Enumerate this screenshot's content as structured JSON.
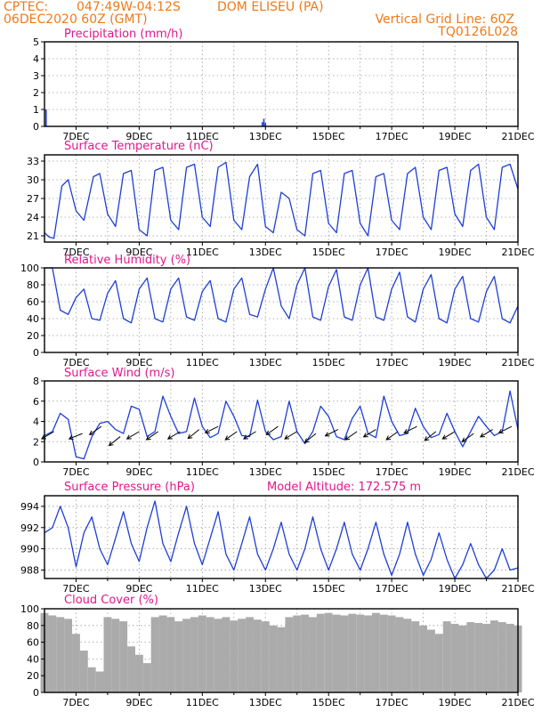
{
  "header": {
    "source": "CPTEC:",
    "coords": "047:49W-04:12S",
    "location": "DOM ELISEU (PA)",
    "run": "06DEC2020 60Z (GMT)",
    "vertical_grid": "Vertical Grid Line: 60Z",
    "model": "TQ0126L028"
  },
  "x_axis": {
    "tick_labels": [
      "7DEC",
      "9DEC",
      "11DEC",
      "13DEC",
      "15DEC",
      "17DEC",
      "19DEC",
      "21DEC"
    ],
    "start_day": 6,
    "end_day": 21
  },
  "colors": {
    "header": "#ee7a1a",
    "panel_title": "#e0188c",
    "series": "#1f3fd6",
    "cloud": "#ababab"
  },
  "chart_data": [
    {
      "type": "bar",
      "title": "Precipitation (mm/h)",
      "ylim": [
        0,
        5
      ],
      "yticks": [
        0,
        1,
        2,
        3,
        4,
        5
      ],
      "x": [
        6.05,
        12.9,
        12.95,
        13.0
      ],
      "values": [
        1.0,
        0.25,
        0.45,
        0.2
      ],
      "unit": "mm/h"
    },
    {
      "type": "line",
      "title": "Surface Temperature (nC)",
      "ylim": [
        20,
        34
      ],
      "yticks": [
        21,
        24,
        27,
        30,
        33
      ],
      "x": [
        6.0,
        6.15,
        6.3,
        6.55,
        6.75,
        7.0,
        7.25,
        7.55,
        7.75,
        8.0,
        8.25,
        8.5,
        8.75,
        9.0,
        9.25,
        9.5,
        9.75,
        10.0,
        10.25,
        10.5,
        10.75,
        11.0,
        11.25,
        11.5,
        11.75,
        12.0,
        12.25,
        12.5,
        12.75,
        13.0,
        13.25,
        13.5,
        13.75,
        14.0,
        14.25,
        14.5,
        14.75,
        15.0,
        15.25,
        15.5,
        15.75,
        16.0,
        16.25,
        16.5,
        16.75,
        17.0,
        17.25,
        17.5,
        17.75,
        18.0,
        18.25,
        18.5,
        18.75,
        19.0,
        19.25,
        19.5,
        19.75,
        20.0,
        20.25,
        20.5,
        20.75,
        21.0
      ],
      "values": [
        21.5,
        20.8,
        20.6,
        29.0,
        30.0,
        25.0,
        23.5,
        30.5,
        31.0,
        24.5,
        22.5,
        31.0,
        31.5,
        22.0,
        21.0,
        31.5,
        32.0,
        23.5,
        22.0,
        32.0,
        32.5,
        24.0,
        22.5,
        32.0,
        32.8,
        23.5,
        22.0,
        30.5,
        32.5,
        22.5,
        21.5,
        28.0,
        27.0,
        22.0,
        21.0,
        31.0,
        31.5,
        23.0,
        21.5,
        31.0,
        31.5,
        23.0,
        21.0,
        30.5,
        31.0,
        23.5,
        22.0,
        31.0,
        32.0,
        24.0,
        22.0,
        31.5,
        32.0,
        24.5,
        22.5,
        31.5,
        32.5,
        24.0,
        22.0,
        32.0,
        32.5,
        28.5
      ],
      "unit": "C"
    },
    {
      "type": "line",
      "title": "Relative Humidity (%)",
      "ylim": [
        0,
        100
      ],
      "yticks": [
        0,
        20,
        40,
        60,
        80,
        100
      ],
      "x": [
        6.0,
        6.25,
        6.5,
        6.75,
        7.0,
        7.25,
        7.5,
        7.75,
        8.0,
        8.25,
        8.5,
        8.75,
        9.0,
        9.25,
        9.5,
        9.75,
        10.0,
        10.25,
        10.5,
        10.75,
        11.0,
        11.25,
        11.5,
        11.75,
        12.0,
        12.25,
        12.5,
        12.75,
        13.0,
        13.25,
        13.5,
        13.75,
        14.0,
        14.25,
        14.5,
        14.75,
        15.0,
        15.25,
        15.5,
        15.75,
        16.0,
        16.25,
        16.5,
        16.75,
        17.0,
        17.25,
        17.5,
        17.75,
        18.0,
        18.25,
        18.5,
        18.75,
        19.0,
        19.25,
        19.5,
        19.75,
        20.0,
        20.25,
        20.5,
        20.75,
        21.0
      ],
      "values": [
        100,
        100,
        50,
        45,
        65,
        75,
        40,
        38,
        70,
        85,
        40,
        35,
        75,
        88,
        40,
        36,
        75,
        88,
        42,
        38,
        72,
        85,
        40,
        36,
        75,
        88,
        45,
        42,
        75,
        100,
        55,
        40,
        80,
        100,
        42,
        38,
        78,
        98,
        42,
        38,
        80,
        100,
        42,
        38,
        75,
        95,
        42,
        36,
        75,
        92,
        40,
        35,
        75,
        90,
        40,
        36,
        72,
        90,
        40,
        35,
        55
      ],
      "unit": "%"
    },
    {
      "type": "line",
      "title": "Surface Wind (m/s)",
      "ylim": [
        0,
        8
      ],
      "yticks": [
        0,
        2,
        4,
        6,
        8
      ],
      "x": [
        6.0,
        6.25,
        6.5,
        6.75,
        7.0,
        7.25,
        7.5,
        7.75,
        8.0,
        8.25,
        8.5,
        8.75,
        9.0,
        9.25,
        9.5,
        9.75,
        10.0,
        10.25,
        10.5,
        10.75,
        11.0,
        11.25,
        11.5,
        11.75,
        12.0,
        12.25,
        12.5,
        12.75,
        13.0,
        13.25,
        13.5,
        13.75,
        14.0,
        14.25,
        14.5,
        14.75,
        15.0,
        15.25,
        15.5,
        15.75,
        16.0,
        16.25,
        16.5,
        16.75,
        17.0,
        17.25,
        17.5,
        17.75,
        18.0,
        18.25,
        18.5,
        18.75,
        19.0,
        19.25,
        19.5,
        19.75,
        20.0,
        20.25,
        20.5,
        20.75,
        21.0
      ],
      "values": [
        2.6,
        3.0,
        4.8,
        4.2,
        0.5,
        0.3,
        2.5,
        3.8,
        4.0,
        3.2,
        2.8,
        5.5,
        5.2,
        2.5,
        3.0,
        6.5,
        4.5,
        2.8,
        3.0,
        6.3,
        3.5,
        2.4,
        2.8,
        6.0,
        4.5,
        2.6,
        2.5,
        6.1,
        3.0,
        2.2,
        2.5,
        6.0,
        3.0,
        1.8,
        3.0,
        5.5,
        4.5,
        2.5,
        2.2,
        4.3,
        5.5,
        2.8,
        2.4,
        6.5,
        4.0,
        2.6,
        2.8,
        5.3,
        3.5,
        2.4,
        2.7,
        4.8,
        3.0,
        1.5,
        3.0,
        4.5,
        3.5,
        2.6,
        3.0,
        7.0,
        3.2
      ],
      "vectors": [
        {
          "x": 6.3,
          "speed": 3.0,
          "dx": -1.0,
          "dy": -0.6
        },
        {
          "x": 7.2,
          "speed": 2.8,
          "dx": -1.0,
          "dy": -0.4
        },
        {
          "x": 7.8,
          "speed": 3.5,
          "dx": -1.0,
          "dy": -0.7
        },
        {
          "x": 8.4,
          "speed": 2.5,
          "dx": -1.0,
          "dy": -0.8
        },
        {
          "x": 9.0,
          "speed": 3.0,
          "dx": -1.0,
          "dy": -0.6
        },
        {
          "x": 9.6,
          "speed": 3.0,
          "dx": -1.0,
          "dy": -0.7
        },
        {
          "x": 10.3,
          "speed": 3.0,
          "dx": -1.0,
          "dy": -0.6
        },
        {
          "x": 10.9,
          "speed": 3.2,
          "dx": -1.0,
          "dy": -0.8
        },
        {
          "x": 11.5,
          "speed": 3.5,
          "dx": -1.0,
          "dy": -0.5
        },
        {
          "x": 12.1,
          "speed": 3.0,
          "dx": -1.0,
          "dy": -0.7
        },
        {
          "x": 12.7,
          "speed": 3.0,
          "dx": -1.0,
          "dy": -0.6
        },
        {
          "x": 13.4,
          "speed": 3.5,
          "dx": -1.0,
          "dy": -0.7
        },
        {
          "x": 14.0,
          "speed": 3.0,
          "dx": -1.0,
          "dy": -0.6
        },
        {
          "x": 14.6,
          "speed": 2.8,
          "dx": -1.0,
          "dy": -0.8
        },
        {
          "x": 15.3,
          "speed": 3.2,
          "dx": -1.0,
          "dy": -0.5
        },
        {
          "x": 15.9,
          "speed": 3.0,
          "dx": -1.0,
          "dy": -0.7
        },
        {
          "x": 16.5,
          "speed": 3.2,
          "dx": -1.0,
          "dy": -0.6
        },
        {
          "x": 17.2,
          "speed": 3.0,
          "dx": -1.0,
          "dy": -0.7
        },
        {
          "x": 17.8,
          "speed": 3.5,
          "dx": -1.0,
          "dy": -0.5
        },
        {
          "x": 18.4,
          "speed": 3.0,
          "dx": -1.0,
          "dy": -0.8
        },
        {
          "x": 19.0,
          "speed": 3.0,
          "dx": -1.0,
          "dy": -0.6
        },
        {
          "x": 19.6,
          "speed": 2.8,
          "dx": -1.0,
          "dy": -0.7
        },
        {
          "x": 20.2,
          "speed": 3.2,
          "dx": -1.0,
          "dy": -0.6
        },
        {
          "x": 20.8,
          "speed": 3.5,
          "dx": -1.0,
          "dy": -0.5
        }
      ],
      "unit": "m/s"
    },
    {
      "type": "line",
      "title": "Surface Pressure (hPa)",
      "annotation": "Model Altitude: 172.575 m",
      "ylim": [
        987.2,
        995.0
      ],
      "yticks": [
        988,
        990,
        992,
        994
      ],
      "x": [
        6.0,
        6.25,
        6.5,
        6.75,
        7.0,
        7.25,
        7.5,
        7.75,
        8.0,
        8.25,
        8.5,
        8.75,
        9.0,
        9.25,
        9.5,
        9.75,
        10.0,
        10.25,
        10.5,
        10.75,
        11.0,
        11.25,
        11.5,
        11.75,
        12.0,
        12.25,
        12.5,
        12.75,
        13.0,
        13.25,
        13.5,
        13.75,
        14.0,
        14.25,
        14.5,
        14.75,
        15.0,
        15.25,
        15.5,
        15.75,
        16.0,
        16.25,
        16.5,
        16.75,
        17.0,
        17.25,
        17.5,
        17.75,
        18.0,
        18.25,
        18.5,
        18.75,
        19.0,
        19.25,
        19.5,
        19.75,
        20.0,
        20.25,
        20.5,
        20.75,
        21.0
      ],
      "values": [
        991.5,
        992.0,
        994.0,
        992.0,
        988.3,
        991.5,
        993.0,
        990.0,
        988.5,
        991.0,
        993.5,
        990.5,
        988.8,
        992.0,
        994.5,
        990.5,
        988.8,
        991.5,
        994.0,
        990.5,
        988.5,
        991.0,
        993.5,
        989.5,
        988.0,
        990.5,
        993.0,
        989.5,
        988.0,
        990.0,
        992.5,
        989.5,
        988.0,
        990.0,
        993.0,
        990.0,
        988.0,
        990.0,
        992.5,
        989.5,
        988.0,
        990.0,
        992.5,
        989.5,
        987.5,
        989.5,
        992.5,
        989.5,
        987.5,
        989.0,
        991.5,
        989.0,
        987.2,
        988.5,
        990.5,
        988.5,
        987.2,
        988.0,
        990.0,
        988.0,
        988.2
      ],
      "unit": "hPa"
    },
    {
      "type": "bar",
      "title": "Cloud Cover (%)",
      "ylim": [
        0,
        100
      ],
      "yticks": [
        0,
        20,
        40,
        60,
        80,
        100
      ],
      "x": [
        6.0,
        6.25,
        6.5,
        6.75,
        7.0,
        7.25,
        7.5,
        7.75,
        8.0,
        8.25,
        8.5,
        8.75,
        9.0,
        9.25,
        9.5,
        9.75,
        10.0,
        10.25,
        10.5,
        10.75,
        11.0,
        11.25,
        11.5,
        11.75,
        12.0,
        12.25,
        12.5,
        12.75,
        13.0,
        13.25,
        13.5,
        13.75,
        14.0,
        14.25,
        14.5,
        14.75,
        15.0,
        15.25,
        15.5,
        15.75,
        16.0,
        16.25,
        16.5,
        16.75,
        17.0,
        17.25,
        17.5,
        17.75,
        18.0,
        18.25,
        18.5,
        18.75,
        19.0,
        19.25,
        19.5,
        19.75,
        20.0,
        20.25,
        20.5,
        20.75,
        21.0
      ],
      "values": [
        95,
        92,
        90,
        88,
        70,
        50,
        30,
        25,
        90,
        88,
        85,
        55,
        45,
        35,
        90,
        92,
        90,
        85,
        88,
        90,
        92,
        90,
        88,
        90,
        86,
        88,
        90,
        87,
        85,
        80,
        78,
        90,
        92,
        93,
        90,
        94,
        95,
        93,
        92,
        94,
        93,
        92,
        95,
        93,
        92,
        90,
        88,
        85,
        80,
        75,
        70,
        85,
        82,
        80,
        84,
        83,
        82,
        86,
        84,
        82,
        80
      ],
      "unit": "%"
    }
  ]
}
